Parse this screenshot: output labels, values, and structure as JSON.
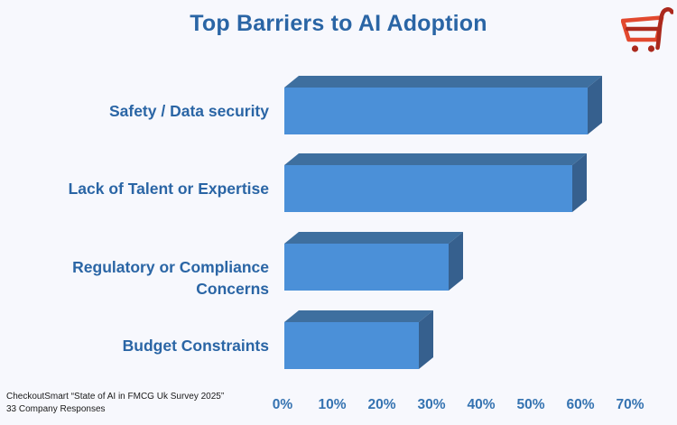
{
  "title": "Top Barriers to AI Adoption",
  "logo": {
    "name": "checkoutsmart-cart",
    "primary_color": "#e2492f",
    "dark_color": "#ab291d"
  },
  "source": {
    "line1": "CheckoutSmart “State of AI in FMCG Uk Survey 2025”",
    "line2": "33 Company Responses"
  },
  "chart_data": {
    "type": "bar",
    "orientation": "horizontal",
    "style": "3d",
    "title": "Top Barriers to AI Adoption",
    "categories": [
      "Safety / Data security",
      "Lack of Talent or Expertise",
      "Regulatory or Compliance Concerns",
      "Budget Constraints"
    ],
    "values": [
      61,
      58,
      33,
      27
    ],
    "unit": "%",
    "xlabel": "",
    "ylabel": "",
    "xlim": [
      0,
      70
    ],
    "x_tick_labels": [
      "0%",
      "10%",
      "20%",
      "30%",
      "40%",
      "50%",
      "60%",
      "70%"
    ],
    "grid": false,
    "legend": "none",
    "bar_front_color": "#4b90d8",
    "bar_top_color": "#3e6f9f",
    "bar_side_color": "#36608e",
    "background_color": "#f7f8fd"
  }
}
